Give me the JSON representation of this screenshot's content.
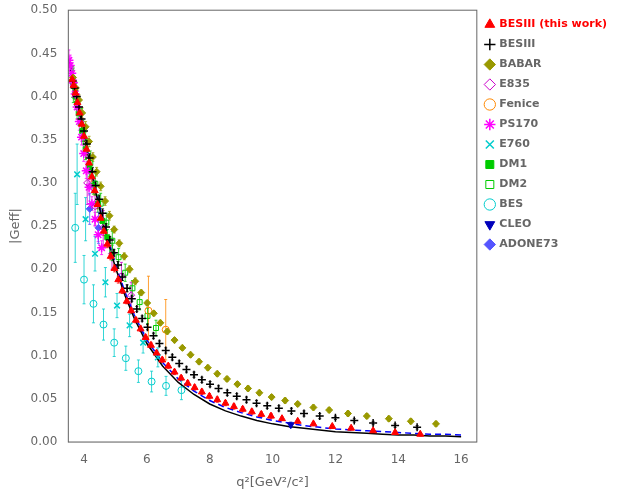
{
  "chart_data": {
    "type": "scatter",
    "x_label": "q²[GeV²/c²]",
    "y_label": "|Geff|",
    "xlim": [
      3.5,
      16.5
    ],
    "ylim": [
      0,
      0.5
    ],
    "xticks": [
      4,
      6,
      8,
      10,
      12,
      14,
      16
    ],
    "yticks": [
      {
        "value": 0,
        "label": "0.00"
      },
      0.05,
      {
        "value": 0.1,
        "label": "0.10"
      },
      0.15,
      {
        "value": 0.2,
        "label": "0.20"
      },
      0.25,
      {
        "value": 0.3,
        "label": "0.30"
      },
      0.35,
      {
        "value": 0.4,
        "label": "0.40"
      },
      0.45,
      {
        "value": 0.5,
        "label": "0.50"
      }
    ],
    "grid": false,
    "legend": "upper right",
    "series": [
      {
        "name": "BESIII (this work)",
        "color": "#ff0000",
        "marker": "triangle_up",
        "x": [
          3.62,
          3.67,
          3.73,
          3.79,
          3.86,
          3.93,
          4.0,
          4.08,
          4.16,
          4.25,
          4.34,
          4.43,
          4.53,
          4.63,
          4.74,
          4.85,
          4.97,
          5.09,
          5.22,
          5.36,
          5.5,
          5.65,
          5.8,
          5.96,
          6.13,
          6.31,
          6.49,
          6.68,
          6.88,
          7.09,
          7.3,
          7.52,
          7.75,
          7.99,
          8.24,
          8.5,
          8.77,
          9.05,
          9.34,
          9.64,
          9.95,
          10.3,
          10.8,
          11.3,
          11.9,
          12.5,
          13.2,
          13.9,
          14.7
        ],
        "values": [
          0.42,
          0.413,
          0.404,
          0.393,
          0.381,
          0.368,
          0.354,
          0.339,
          0.323,
          0.307,
          0.291,
          0.275,
          0.259,
          0.244,
          0.229,
          0.215,
          0.201,
          0.188,
          0.175,
          0.163,
          0.152,
          0.141,
          0.131,
          0.121,
          0.112,
          0.103,
          0.095,
          0.088,
          0.081,
          0.074,
          0.068,
          0.063,
          0.058,
          0.053,
          0.049,
          0.045,
          0.041,
          0.038,
          0.035,
          0.032,
          0.03,
          0.027,
          0.024,
          0.021,
          0.018,
          0.016,
          0.013,
          0.011,
          0.009
        ],
        "yerr": [
          0.008,
          0.008,
          0.007,
          0.007,
          0.007,
          0.007,
          0.006,
          0.006,
          0.006,
          0.005,
          0.005,
          0.005,
          0.005,
          0.005,
          0.004,
          0.004,
          0.004,
          0.004,
          0.003,
          0.003,
          0.003,
          0.003,
          0.003,
          0.003,
          0.003,
          0.003,
          0.003,
          0.003,
          0.003,
          0.003,
          0.003,
          0.003,
          0.003,
          0.003,
          0.003,
          0.003,
          0.003,
          0.003,
          0.003,
          0.003,
          0.003,
          0.002,
          0.002,
          0.002,
          0.002,
          0.002,
          0.002,
          0.002,
          0.002
        ]
      },
      {
        "name": "BESIII",
        "color": "#000000",
        "marker": "plus",
        "x": [
          3.64,
          3.7,
          3.77,
          3.84,
          3.92,
          4.0,
          4.09,
          4.18,
          4.27,
          4.37,
          4.48,
          4.59,
          4.7,
          4.82,
          4.95,
          5.08,
          5.22,
          5.37,
          5.52,
          5.68,
          5.85,
          6.02,
          6.21,
          6.4,
          6.6,
          6.81,
          7.03,
          7.26,
          7.5,
          7.75,
          8.01,
          8.28,
          8.56,
          8.86,
          9.17,
          9.49,
          9.83,
          10.2,
          10.6,
          11.0,
          11.5,
          12.0,
          12.6,
          13.2,
          13.9,
          14.6
        ],
        "values": [
          0.418,
          0.41,
          0.4,
          0.388,
          0.374,
          0.36,
          0.345,
          0.329,
          0.313,
          0.297,
          0.281,
          0.265,
          0.249,
          0.234,
          0.219,
          0.205,
          0.191,
          0.178,
          0.166,
          0.154,
          0.143,
          0.133,
          0.123,
          0.114,
          0.106,
          0.098,
          0.091,
          0.084,
          0.078,
          0.072,
          0.067,
          0.062,
          0.057,
          0.053,
          0.049,
          0.045,
          0.042,
          0.039,
          0.036,
          0.033,
          0.03,
          0.028,
          0.025,
          0.022,
          0.019,
          0.017
        ],
        "yerr": [
          0.007,
          0.007,
          0.007,
          0.006,
          0.006,
          0.006,
          0.006,
          0.005,
          0.005,
          0.005,
          0.005,
          0.005,
          0.004,
          0.004,
          0.004,
          0.004,
          0.004,
          0.004,
          0.003,
          0.003,
          0.003,
          0.003,
          0.003,
          0.003,
          0.003,
          0.003,
          0.003,
          0.003,
          0.003,
          0.003,
          0.003,
          0.003,
          0.003,
          0.003,
          0.003,
          0.003,
          0.003,
          0.003,
          0.003,
          0.003,
          0.003,
          0.002,
          0.002,
          0.002,
          0.002,
          0.002
        ]
      },
      {
        "name": "BABAR",
        "color": "#999900",
        "marker": "diamond",
        "x": [
          3.65,
          3.74,
          3.84,
          3.94,
          4.05,
          4.16,
          4.28,
          4.4,
          4.53,
          4.67,
          4.81,
          4.96,
          5.12,
          5.28,
          5.45,
          5.63,
          5.82,
          6.01,
          6.22,
          6.43,
          6.65,
          6.88,
          7.13,
          7.39,
          7.66,
          7.94,
          8.24,
          8.55,
          8.88,
          9.22,
          9.58,
          9.97,
          10.4,
          10.8,
          11.3,
          11.8,
          12.4,
          13.0,
          13.7,
          14.4,
          15.2
        ],
        "values": [
          0.422,
          0.41,
          0.396,
          0.381,
          0.365,
          0.348,
          0.33,
          0.313,
          0.296,
          0.279,
          0.262,
          0.246,
          0.23,
          0.215,
          0.2,
          0.186,
          0.173,
          0.161,
          0.149,
          0.138,
          0.128,
          0.118,
          0.109,
          0.101,
          0.093,
          0.086,
          0.079,
          0.073,
          0.067,
          0.062,
          0.057,
          0.052,
          0.048,
          0.044,
          0.04,
          0.037,
          0.033,
          0.03,
          0.027,
          0.024,
          0.021
        ],
        "yerr": [
          0.007,
          0.007,
          0.006,
          0.006,
          0.006,
          0.006,
          0.005,
          0.005,
          0.005,
          0.005,
          0.005,
          0.004,
          0.004,
          0.004,
          0.004,
          0.004,
          0.003,
          0.003,
          0.003,
          0.003,
          0.003,
          0.003,
          0.003,
          0.003,
          0.003,
          0.003,
          0.003,
          0.003,
          0.003,
          0.003,
          0.003,
          0.003,
          0.003,
          0.003,
          0.003,
          0.003,
          0.003,
          0.003,
          0.003,
          0.003,
          0.003
        ]
      },
      {
        "name": "E835",
        "color": "#cc00cc",
        "marker": "open_diamond",
        "x": [
          4.1,
          4.35,
          4.61,
          4.89,
          5.19,
          5.5
        ],
        "values": [
          0.3,
          0.273,
          0.248,
          0.218,
          0.192,
          0.17
        ],
        "yerr": [
          0.025,
          0.022,
          0.02,
          0.018,
          0.016,
          0.015
        ]
      },
      {
        "name": "Fenice",
        "color": "#ff8800",
        "marker": "open_circle",
        "x": [
          6.05,
          6.6
        ],
        "values": [
          0.152,
          0.13
        ],
        "yerr": [
          0.04,
          0.035
        ]
      },
      {
        "name": "PS170",
        "color": "#ff00ff",
        "marker": "star",
        "x": [
          3.52,
          3.56,
          3.61,
          3.66,
          3.72,
          3.78,
          3.85,
          3.92,
          3.99,
          4.07,
          4.16,
          4.25,
          4.35,
          4.45,
          4.56
        ],
        "values": [
          0.442,
          0.436,
          0.427,
          0.416,
          0.403,
          0.388,
          0.371,
          0.353,
          0.334,
          0.314,
          0.295,
          0.276,
          0.258,
          0.24,
          0.225
        ],
        "yerr": [
          0.012,
          0.012,
          0.011,
          0.011,
          0.01,
          0.01,
          0.01,
          0.009,
          0.009,
          0.009,
          0.009,
          0.008,
          0.008,
          0.008,
          0.008
        ]
      },
      {
        "name": "E760",
        "color": "#00cccc",
        "marker": "x",
        "x": [
          3.78,
          4.05,
          4.35,
          4.68,
          5.05,
          5.45,
          5.88,
          6.35
        ],
        "values": [
          0.31,
          0.258,
          0.218,
          0.185,
          0.158,
          0.135,
          0.115,
          0.098
        ],
        "yerr": [
          0.035,
          0.025,
          0.02,
          0.017,
          0.014,
          0.013,
          0.012,
          0.011
        ]
      },
      {
        "name": "DM1",
        "color": "#00cc00",
        "marker": "square",
        "x": [
          3.64,
          3.73,
          3.83,
          3.94,
          4.05,
          4.17,
          4.3,
          4.44,
          4.59,
          4.74,
          4.9
        ],
        "values": [
          0.417,
          0.4,
          0.381,
          0.36,
          0.339,
          0.318,
          0.297,
          0.276,
          0.256,
          0.237,
          0.219
        ],
        "yerr": [
          0.018,
          0.015,
          0.014,
          0.012,
          0.012,
          0.011,
          0.01,
          0.01,
          0.009,
          0.009,
          0.009
        ]
      },
      {
        "name": "DM2",
        "color": "#00cc00",
        "marker": "open_square",
        "x": [
          3.66,
          3.78,
          3.91,
          4.05,
          4.2,
          4.36,
          4.53,
          4.71,
          4.9,
          5.1,
          5.31,
          5.54,
          5.77,
          6.02,
          6.29
        ],
        "values": [
          0.413,
          0.392,
          0.37,
          0.347,
          0.323,
          0.299,
          0.276,
          0.254,
          0.233,
          0.214,
          0.196,
          0.178,
          0.162,
          0.146,
          0.132
        ],
        "yerr": [
          0.02,
          0.018,
          0.016,
          0.015,
          0.014,
          0.013,
          0.012,
          0.011,
          0.011,
          0.01,
          0.01,
          0.009,
          0.009,
          0.009,
          0.009
        ]
      },
      {
        "name": "BES",
        "color": "#00cccc",
        "marker": "open_circle",
        "x": [
          3.72,
          4.0,
          4.3,
          4.62,
          4.96,
          5.33,
          5.73,
          6.15,
          6.61,
          7.1
        ],
        "values": [
          0.248,
          0.188,
          0.16,
          0.136,
          0.115,
          0.097,
          0.082,
          0.07,
          0.065,
          0.06
        ],
        "yerr": [
          0.04,
          0.028,
          0.022,
          0.018,
          0.016,
          0.014,
          0.013,
          0.012,
          0.011,
          0.011
        ]
      },
      {
        "name": "CLEO",
        "color": "#0000bb",
        "marker": "triangle_down",
        "x": [
          10.58
        ],
        "values": [
          0.02
        ],
        "yerr": [
          0.003
        ]
      },
      {
        "name": "ADONE73",
        "color": "#5555ff",
        "marker": "diamond",
        "x": [
          4.18,
          4.46
        ],
        "values": [
          0.27,
          0.248
        ],
        "yerr": [
          0.018,
          0.018
        ]
      },
      {
        "type": "line",
        "color": "#000000",
        "line_style": "solid",
        "x": [
          3.52,
          3.6,
          3.7,
          3.8,
          3.9,
          4.0,
          4.1,
          4.2,
          4.4,
          4.6,
          4.8,
          5.0,
          5.3,
          5.6,
          6.0,
          6.5,
          7.0,
          7.5,
          8.0,
          8.5,
          9.0,
          9.5,
          10.0,
          10.5,
          11.0,
          11.5,
          12.0,
          12.5,
          13.0,
          13.5,
          14.0,
          14.5,
          15.0,
          15.5,
          16.0
        ],
        "values": [
          0.443,
          0.428,
          0.41,
          0.392,
          0.374,
          0.355,
          0.337,
          0.319,
          0.285,
          0.254,
          0.227,
          0.202,
          0.17,
          0.143,
          0.114,
          0.088,
          0.069,
          0.055,
          0.044,
          0.036,
          0.03,
          0.025,
          0.021,
          0.018,
          0.016,
          0.014,
          0.012,
          0.011,
          0.01,
          0.009,
          0.008,
          0.008,
          0.007,
          0.007,
          0.006
        ]
      },
      {
        "type": "line",
        "color": "#0000ff",
        "line_style": "dashed",
        "x": [
          3.52,
          3.6,
          3.7,
          3.8,
          3.9,
          4.0,
          4.1,
          4.2,
          4.4,
          4.6,
          4.8,
          5.0,
          5.3,
          5.6,
          6.0,
          6.5,
          7.0,
          7.5,
          8.0,
          8.5,
          9.0,
          9.5,
          10.0,
          10.5,
          11.0,
          11.5,
          12.0,
          12.5,
          13.0,
          13.5,
          14.0,
          14.5,
          15.0,
          15.5,
          16.0
        ],
        "values": [
          0.443,
          0.429,
          0.412,
          0.394,
          0.376,
          0.357,
          0.339,
          0.321,
          0.288,
          0.257,
          0.23,
          0.206,
          0.174,
          0.147,
          0.118,
          0.092,
          0.073,
          0.059,
          0.048,
          0.04,
          0.034,
          0.029,
          0.025,
          0.022,
          0.019,
          0.017,
          0.015,
          0.014,
          0.013,
          0.012,
          0.011,
          0.01,
          0.009,
          0.009,
          0.008
        ]
      }
    ]
  }
}
